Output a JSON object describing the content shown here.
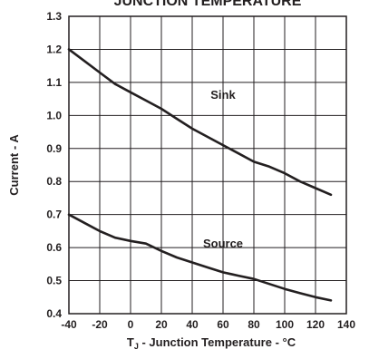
{
  "chart_data": {
    "type": "line",
    "title": "JUNCTION TEMPERATURE",
    "xlabel": "T J - Junction Temperature - °C",
    "xlabel_parts": {
      "prefix": "T",
      "subscript": "J",
      "suffix": " - Junction Temperature - °C"
    },
    "ylabel": "Current - A",
    "xlim": [
      -40,
      140
    ],
    "ylim": [
      0.4,
      1.3
    ],
    "xticks": [
      -40,
      -20,
      0,
      20,
      40,
      60,
      80,
      100,
      120,
      140
    ],
    "yticks": [
      "0.4",
      "0.5",
      "0.6",
      "0.7",
      "0.8",
      "0.9",
      "1.0",
      "1.1",
      "1.2",
      "1.3"
    ],
    "grid": true,
    "series": [
      {
        "name": "Sink",
        "x": [
          -40,
          -30,
          -20,
          -10,
          0,
          10,
          20,
          30,
          40,
          50,
          60,
          70,
          80,
          90,
          100,
          110,
          120,
          130
        ],
        "y": [
          1.2,
          1.165,
          1.13,
          1.095,
          1.07,
          1.045,
          1.02,
          0.99,
          0.96,
          0.935,
          0.91,
          0.885,
          0.86,
          0.845,
          0.825,
          0.8,
          0.78,
          0.76
        ]
      },
      {
        "name": "Source",
        "x": [
          -40,
          -30,
          -20,
          -10,
          0,
          10,
          20,
          30,
          40,
          50,
          60,
          70,
          80,
          90,
          100,
          110,
          120,
          130
        ],
        "y": [
          0.7,
          0.675,
          0.65,
          0.63,
          0.62,
          0.612,
          0.59,
          0.57,
          0.555,
          0.54,
          0.525,
          0.515,
          0.505,
          0.49,
          0.475,
          0.462,
          0.45,
          0.44
        ]
      }
    ]
  }
}
